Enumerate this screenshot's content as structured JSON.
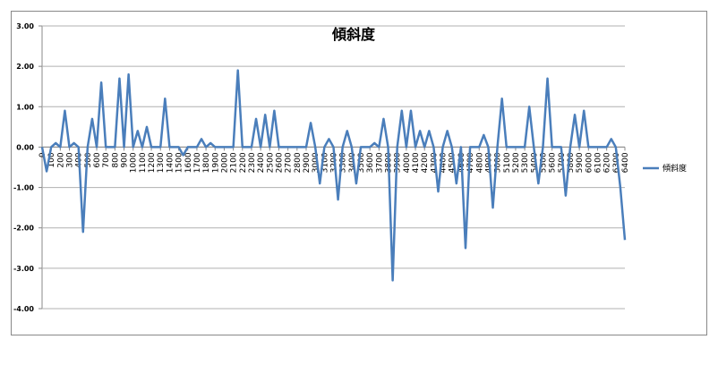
{
  "chart_data": {
    "type": "line",
    "title": "傾斜度",
    "x": [
      0,
      50,
      100,
      150,
      200,
      250,
      300,
      350,
      400,
      450,
      500,
      550,
      600,
      650,
      700,
      750,
      800,
      850,
      900,
      950,
      1000,
      1050,
      1100,
      1150,
      1200,
      1250,
      1300,
      1350,
      1400,
      1450,
      1500,
      1550,
      1600,
      1650,
      1700,
      1750,
      1800,
      1850,
      1900,
      1950,
      2000,
      2050,
      2100,
      2150,
      2200,
      2250,
      2300,
      2350,
      2400,
      2450,
      2500,
      2550,
      2600,
      2650,
      2700,
      2750,
      2800,
      2850,
      2900,
      2950,
      3000,
      3050,
      3100,
      3150,
      3200,
      3250,
      3300,
      3350,
      3400,
      3450,
      3500,
      3550,
      3600,
      3650,
      3700,
      3750,
      3800,
      3850,
      3900,
      3950,
      4000,
      4050,
      4100,
      4150,
      4200,
      4250,
      4300,
      4350,
      4400,
      4450,
      4500,
      4550,
      4600,
      4650,
      4700,
      4750,
      4800,
      4850,
      4900,
      4950,
      5000,
      5050,
      5100,
      5150,
      5200,
      5250,
      5300,
      5350,
      5400,
      5450,
      5500,
      5550,
      5600,
      5650,
      5700,
      5750,
      5800,
      5850,
      5900,
      5950,
      6000,
      6050,
      6100,
      6150,
      6200,
      6250,
      6300,
      6350,
      6400
    ],
    "series": [
      {
        "name": "傾斜度",
        "color": "#4a7ebb",
        "values": [
          0,
          -0.6,
          0,
          0.1,
          0,
          0.9,
          0,
          0.1,
          0,
          -2.1,
          0,
          0.7,
          0,
          1.6,
          0,
          0,
          0,
          1.7,
          0,
          1.8,
          0,
          0.4,
          0,
          0.5,
          0,
          0,
          0,
          1.2,
          0,
          0,
          0,
          -0.2,
          0,
          0,
          0,
          0.2,
          0,
          0.1,
          0,
          0,
          0,
          0,
          0,
          1.9,
          0,
          0,
          0,
          0.7,
          0,
          0.8,
          0,
          0.9,
          0,
          0,
          0,
          0,
          0,
          0,
          0,
          0.6,
          0,
          -0.9,
          0,
          0.2,
          0,
          -1.3,
          0,
          0.4,
          0,
          -0.9,
          0,
          0,
          0,
          0.1,
          0,
          0.7,
          0,
          -3.3,
          0,
          0.9,
          0,
          0.9,
          0,
          0.4,
          0,
          0.4,
          0,
          -1.1,
          0,
          0.4,
          0,
          -0.9,
          0,
          -2.5,
          0,
          0,
          0,
          0.3,
          0,
          -1.5,
          0,
          1.2,
          0,
          0,
          0,
          0,
          0,
          1.0,
          0,
          -0.9,
          0,
          1.7,
          0,
          0,
          0,
          -1.2,
          0,
          0.8,
          0,
          0.9,
          0,
          0,
          0,
          0,
          0,
          0.2,
          0,
          -1.0,
          -2.3
        ]
      }
    ],
    "xlim": [
      0,
      6400
    ],
    "xticks": [
      0,
      100,
      200,
      300,
      400,
      500,
      600,
      700,
      800,
      900,
      1000,
      1100,
      1200,
      1300,
      1400,
      1500,
      1600,
      1700,
      1800,
      1900,
      2000,
      2100,
      2200,
      2300,
      2400,
      2500,
      2600,
      2700,
      2800,
      2900,
      3000,
      3100,
      3200,
      3300,
      3400,
      3500,
      3600,
      3700,
      3800,
      3900,
      4000,
      4100,
      4200,
      4300,
      4400,
      4500,
      4600,
      4700,
      4800,
      4900,
      5000,
      5100,
      5200,
      5300,
      5400,
      5500,
      5600,
      5700,
      5800,
      5900,
      6000,
      6100,
      6200,
      6300,
      6400
    ],
    "ylim": [
      -4,
      3
    ],
    "yticks": [
      {
        "value": 3,
        "label": "3.00"
      },
      {
        "value": 2,
        "label": "2.00"
      },
      {
        "value": 1,
        "label": "1.00"
      },
      {
        "value": 0,
        "label": "0.00"
      },
      {
        "value": -1,
        "label": "-1.00"
      },
      {
        "value": -2,
        "label": "-2.00"
      },
      {
        "value": -3,
        "label": "-3.00"
      },
      {
        "value": -4,
        "label": "-4.00"
      }
    ],
    "grid": true,
    "legend": "right"
  }
}
